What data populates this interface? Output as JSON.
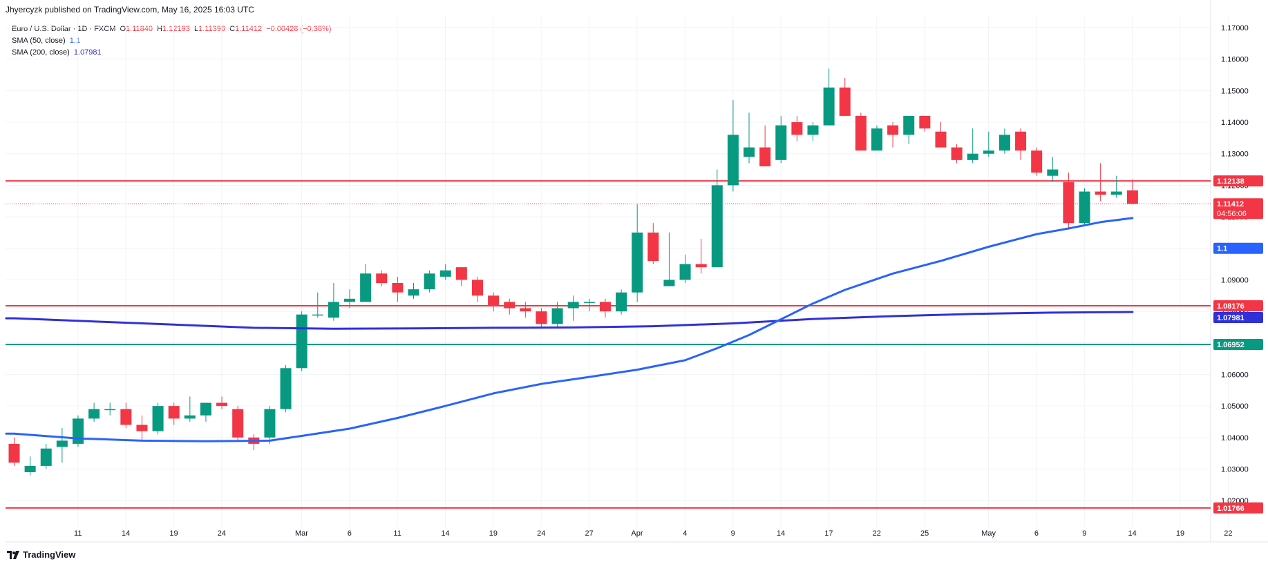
{
  "header": {
    "publisher": "Jhyercyzk published on TradingView.com, May 16, 2025 16:03 UTC"
  },
  "legend": {
    "symbol": "Euro / U.S. Dollar · 1D · FXCM",
    "ohlc": {
      "o_label": "O",
      "o": "1.11840",
      "h_label": "H",
      "h": "1.12193",
      "l_label": "L",
      "l": "1.11396",
      "c_label": "C",
      "c": "1.11412",
      "change": "−0.00428 (−0.38%)"
    },
    "sma50_label": "SMA (50, close)",
    "sma50_value": "1.1",
    "sma200_label": "SMA (200, close)",
    "sma200_value": "1.07981"
  },
  "footer": {
    "brand": "TradingView"
  },
  "colors": {
    "up": "#089981",
    "down": "#f23645",
    "sma50": "#2962ff",
    "sma200": "#3030d8",
    "hline_red": "#f23645",
    "hline_green": "#089981",
    "grid": "#f0f3fa"
  },
  "chart_data": {
    "type": "candlestick",
    "ylim": [
      1.0115,
      1.1735
    ],
    "y_ticks": [
      "1.17000",
      "1.16000",
      "1.15000",
      "1.14000",
      "1.13000",
      "1.12000",
      "1.11000",
      "1.10000",
      "1.09000",
      "1.08000",
      "1.07000",
      "1.06000",
      "1.05000",
      "1.04000",
      "1.03000",
      "1.02000"
    ],
    "x_ticks": [
      {
        "label": "11",
        "i": 2
      },
      {
        "label": "14",
        "i": 5
      },
      {
        "label": "19",
        "i": 8
      },
      {
        "label": "24",
        "i": 11
      },
      {
        "label": "Mar",
        "i": 16
      },
      {
        "label": "6",
        "i": 19
      },
      {
        "label": "11",
        "i": 22
      },
      {
        "label": "14",
        "i": 25
      },
      {
        "label": "19",
        "i": 28
      },
      {
        "label": "24",
        "i": 31
      },
      {
        "label": "27",
        "i": 34
      },
      {
        "label": "Apr",
        "i": 37
      },
      {
        "label": "4",
        "i": 40
      },
      {
        "label": "9",
        "i": 43
      },
      {
        "label": "14",
        "i": 46
      },
      {
        "label": "17",
        "i": 49
      },
      {
        "label": "22",
        "i": 52
      },
      {
        "label": "25",
        "i": 55
      },
      {
        "label": "May",
        "i": 59
      },
      {
        "label": "6",
        "i": 62
      },
      {
        "label": "9",
        "i": 65
      },
      {
        "label": "14",
        "i": 68
      },
      {
        "label": "19",
        "i": 71
      },
      {
        "label": "22",
        "i": 74
      }
    ],
    "candles": [
      [
        1.038,
        1.04,
        1.031,
        1.032
      ],
      [
        1.029,
        1.034,
        1.028,
        1.031
      ],
      [
        1.031,
        1.038,
        1.03,
        1.0365
      ],
      [
        1.037,
        1.043,
        1.032,
        1.039
      ],
      [
        1.038,
        1.047,
        1.037,
        1.046
      ],
      [
        1.046,
        1.051,
        1.045,
        1.049
      ],
      [
        1.049,
        1.051,
        1.047,
        1.049
      ],
      [
        1.049,
        1.051,
        1.043,
        1.044
      ],
      [
        1.044,
        1.047,
        1.039,
        1.042
      ],
      [
        1.042,
        1.051,
        1.041,
        1.05
      ],
      [
        1.05,
        1.051,
        1.044,
        1.046
      ],
      [
        1.046,
        1.053,
        1.045,
        1.047
      ],
      [
        1.047,
        1.051,
        1.045,
        1.051
      ],
      [
        1.051,
        1.053,
        1.049,
        1.05
      ],
      [
        1.049,
        1.05,
        1.039,
        1.04
      ],
      [
        1.04,
        1.041,
        1.036,
        1.038
      ],
      [
        1.04,
        1.05,
        1.038,
        1.049
      ],
      [
        1.049,
        1.063,
        1.048,
        1.062
      ],
      [
        1.062,
        1.08,
        1.061,
        1.079
      ],
      [
        1.079,
        1.086,
        1.078,
        1.079
      ],
      [
        1.078,
        1.089,
        1.077,
        1.083
      ],
      [
        1.083,
        1.087,
        1.081,
        1.084
      ],
      [
        1.083,
        1.095,
        1.083,
        1.092
      ],
      [
        1.092,
        1.093,
        1.088,
        1.089
      ],
      [
        1.089,
        1.091,
        1.083,
        1.086
      ],
      [
        1.085,
        1.089,
        1.084,
        1.087
      ],
      [
        1.087,
        1.093,
        1.086,
        1.092
      ],
      [
        1.091,
        1.095,
        1.09,
        1.093
      ],
      [
        1.094,
        1.094,
        1.088,
        1.09
      ],
      [
        1.09,
        1.091,
        1.083,
        1.085
      ],
      [
        1.085,
        1.086,
        1.08,
        1.082
      ],
      [
        1.083,
        1.084,
        1.079,
        1.081
      ],
      [
        1.081,
        1.083,
        1.078,
        1.08
      ],
      [
        1.08,
        1.081,
        1.075,
        1.076
      ],
      [
        1.076,
        1.083,
        1.075,
        1.081
      ],
      [
        1.081,
        1.085,
        1.077,
        1.083
      ],
      [
        1.083,
        1.084,
        1.08,
        1.083
      ],
      [
        1.083,
        1.084,
        1.078,
        1.08
      ],
      [
        1.08,
        1.087,
        1.079,
        1.086
      ],
      [
        1.086,
        1.114,
        1.083,
        1.105
      ],
      [
        1.105,
        1.108,
        1.095,
        1.096
      ],
      [
        1.088,
        1.105,
        1.088,
        1.09
      ],
      [
        1.09,
        1.098,
        1.089,
        1.095
      ],
      [
        1.095,
        1.103,
        1.092,
        1.094
      ],
      [
        1.094,
        1.125,
        1.094,
        1.12
      ],
      [
        1.12,
        1.147,
        1.118,
        1.136
      ],
      [
        1.129,
        1.143,
        1.127,
        1.132
      ],
      [
        1.132,
        1.139,
        1.126,
        1.126
      ],
      [
        1.128,
        1.142,
        1.127,
        1.139
      ],
      [
        1.14,
        1.142,
        1.134,
        1.136
      ],
      [
        1.136,
        1.14,
        1.134,
        1.139
      ],
      [
        1.139,
        1.157,
        1.139,
        1.151
      ],
      [
        1.151,
        1.154,
        1.142,
        1.142
      ],
      [
        1.142,
        1.143,
        1.131,
        1.131
      ],
      [
        1.131,
        1.139,
        1.131,
        1.138
      ],
      [
        1.139,
        1.14,
        1.132,
        1.136
      ],
      [
        1.136,
        1.142,
        1.133,
        1.142
      ],
      [
        1.142,
        1.142,
        1.137,
        1.138
      ],
      [
        1.137,
        1.14,
        1.132,
        1.132
      ],
      [
        1.132,
        1.133,
        1.127,
        1.128
      ],
      [
        1.128,
        1.138,
        1.127,
        1.13
      ],
      [
        1.13,
        1.137,
        1.129,
        1.131
      ],
      [
        1.131,
        1.138,
        1.13,
        1.136
      ],
      [
        1.137,
        1.138,
        1.128,
        1.131
      ],
      [
        1.131,
        1.132,
        1.123,
        1.124
      ],
      [
        1.123,
        1.129,
        1.121,
        1.125
      ],
      [
        1.121,
        1.124,
        1.106,
        1.108
      ],
      [
        1.108,
        1.119,
        1.107,
        1.118
      ],
      [
        1.118,
        1.127,
        1.115,
        1.117
      ],
      [
        1.117,
        1.123,
        1.116,
        1.118
      ],
      [
        1.1184,
        1.12193,
        1.11396,
        1.11412
      ]
    ],
    "sma50": [
      [
        0,
        1.0412
      ],
      [
        4,
        1.0397
      ],
      [
        8,
        1.039
      ],
      [
        12,
        1.0388
      ],
      [
        16,
        1.039
      ],
      [
        18,
        1.0405
      ],
      [
        21,
        1.0428
      ],
      [
        24,
        1.0462
      ],
      [
        27,
        1.05
      ],
      [
        30,
        1.054
      ],
      [
        33,
        1.057
      ],
      [
        36,
        1.0592
      ],
      [
        39,
        1.0615
      ],
      [
        42,
        1.0645
      ],
      [
        44,
        1.0683
      ],
      [
        46,
        1.0725
      ],
      [
        48,
        1.0775
      ],
      [
        50,
        1.0825
      ],
      [
        52,
        1.0868
      ],
      [
        55,
        1.092
      ],
      [
        58,
        1.096
      ],
      [
        61,
        1.1005
      ],
      [
        64,
        1.1045
      ],
      [
        66,
        1.1063
      ],
      [
        68,
        1.1083
      ],
      [
        70,
        1.1096
      ]
    ],
    "sma200": [
      [
        0,
        1.0778
      ],
      [
        5,
        1.0768
      ],
      [
        10,
        1.0758
      ],
      [
        15,
        1.0748
      ],
      [
        20,
        1.0745
      ],
      [
        25,
        1.0746
      ],
      [
        30,
        1.0748
      ],
      [
        35,
        1.0749
      ],
      [
        40,
        1.0753
      ],
      [
        45,
        1.0762
      ],
      [
        50,
        1.0776
      ],
      [
        55,
        1.0785
      ],
      [
        60,
        1.0792
      ],
      [
        65,
        1.0796
      ],
      [
        70,
        1.0798
      ]
    ],
    "hlines": [
      {
        "value": 1.12138,
        "label": "1.12138",
        "color": "#f23645"
      },
      {
        "value": 1.08176,
        "label": "1.08176",
        "color": "#f23645"
      },
      {
        "value": 1.06952,
        "label": "1.06952",
        "color": "#089981"
      },
      {
        "value": 1.01766,
        "label": "1.01766",
        "color": "#f23645"
      }
    ],
    "current_price": {
      "value": 1.11412,
      "label": "1.11412",
      "countdown": "04:56:06"
    },
    "sma50_tag": {
      "value": 1.1,
      "label": "1.1"
    },
    "sma200_tag": {
      "value": 1.07981,
      "label": "1.07981"
    }
  }
}
